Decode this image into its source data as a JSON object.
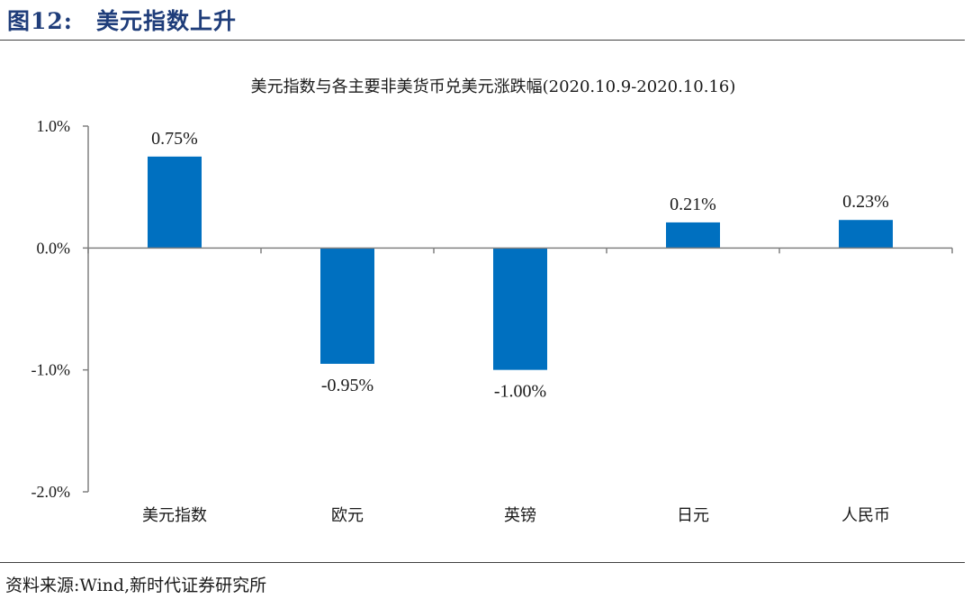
{
  "figure": {
    "label": "图12:",
    "title": "美元指数上升"
  },
  "source": "资料来源:Wind,新时代证券研究所",
  "colors": {
    "bar": "#0070c0",
    "axis": "#808080",
    "header": "#1f3d7a"
  },
  "chart_data": {
    "type": "bar",
    "title": "美元指数与各主要非美货币兑美元涨跌幅(2020.10.9-2020.10.16)",
    "categories": [
      "美元指数",
      "欧元",
      "英镑",
      "日元",
      "人民币"
    ],
    "values": [
      0.75,
      -0.95,
      -1.0,
      0.21,
      0.23
    ],
    "data_labels": [
      "0.75%",
      "-0.95%",
      "-1.00%",
      "0.21%",
      "0.23%"
    ],
    "ylim": [
      -2.0,
      1.0
    ],
    "yticks": [
      1.0,
      0.0,
      -1.0,
      -2.0
    ],
    "ytick_labels": [
      "1.0%",
      "0.0%",
      "-1.0%",
      "-2.0%"
    ],
    "xlabel": "",
    "ylabel": "",
    "grid": false,
    "legend": "none"
  }
}
